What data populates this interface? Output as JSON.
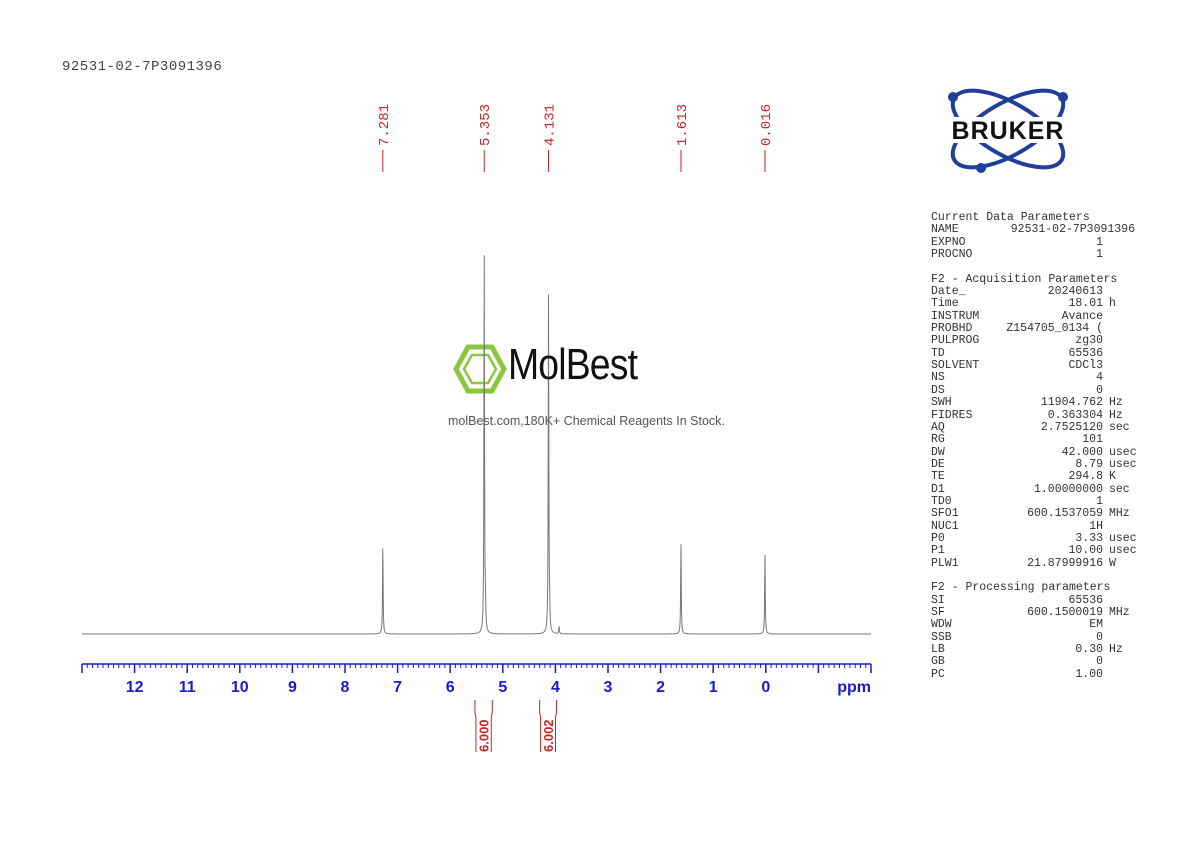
{
  "sample_name": "92531-02-7P3091396",
  "logo": {
    "brand": "BRUKER"
  },
  "watermark": {
    "name": "MolBest",
    "tagline": "molBest.com,180K+ Chemical Reagents In Stock."
  },
  "params": {
    "current": {
      "heading": "Current Data Parameters",
      "rows": [
        {
          "k": "NAME",
          "v": "92531-02-7P3091396",
          "u": ""
        },
        {
          "k": "EXPNO",
          "v": "1",
          "u": ""
        },
        {
          "k": "PROCNO",
          "v": "1",
          "u": ""
        }
      ]
    },
    "acq": {
      "heading": "F2 - Acquisition Parameters",
      "rows": [
        {
          "k": "Date_",
          "v": "20240613",
          "u": ""
        },
        {
          "k": "Time",
          "v": "18.01",
          "u": "h"
        },
        {
          "k": "INSTRUM",
          "v": "Avance",
          "u": ""
        },
        {
          "k": "PROBHD",
          "v": "Z154705_0134 (",
          "u": ""
        },
        {
          "k": "PULPROG",
          "v": "zg30",
          "u": ""
        },
        {
          "k": "TD",
          "v": "65536",
          "u": ""
        },
        {
          "k": "SOLVENT",
          "v": "CDCl3",
          "u": ""
        },
        {
          "k": "NS",
          "v": "4",
          "u": ""
        },
        {
          "k": "DS",
          "v": "0",
          "u": ""
        },
        {
          "k": "SWH",
          "v": "11904.762",
          "u": "Hz"
        },
        {
          "k": "FIDRES",
          "v": "0.363304",
          "u": "Hz"
        },
        {
          "k": "AQ",
          "v": "2.7525120",
          "u": "sec"
        },
        {
          "k": "RG",
          "v": "101",
          "u": ""
        },
        {
          "k": "DW",
          "v": "42.000",
          "u": "usec"
        },
        {
          "k": "DE",
          "v": "8.79",
          "u": "usec"
        },
        {
          "k": "TE",
          "v": "294.8",
          "u": "K"
        },
        {
          "k": "D1",
          "v": "1.00000000",
          "u": "sec"
        },
        {
          "k": "TD0",
          "v": "1",
          "u": ""
        },
        {
          "k": "SFO1",
          "v": "600.1537059",
          "u": "MHz"
        },
        {
          "k": "NUC1",
          "v": "1H",
          "u": ""
        },
        {
          "k": "P0",
          "v": "3.33",
          "u": "usec"
        },
        {
          "k": "P1",
          "v": "10.00",
          "u": "usec"
        },
        {
          "k": "PLW1",
          "v": "21.87999916",
          "u": "W"
        }
      ]
    },
    "proc": {
      "heading": "F2 - Processing parameters",
      "rows": [
        {
          "k": "SI",
          "v": "65536",
          "u": ""
        },
        {
          "k": "SF",
          "v": "600.1500019",
          "u": "MHz"
        },
        {
          "k": "WDW",
          "v": "EM",
          "u": ""
        },
        {
          "k": "SSB",
          "v": "0",
          "u": ""
        },
        {
          "k": "LB",
          "v": "0.30",
          "u": "Hz"
        },
        {
          "k": "GB",
          "v": "0",
          "u": ""
        },
        {
          "k": "PC",
          "v": "1.00",
          "u": ""
        }
      ]
    }
  },
  "chart_data": {
    "type": "line",
    "xlabel": "ppm",
    "xlim": [
      13.0,
      -2.0
    ],
    "x_ticks": [
      12,
      11,
      10,
      9,
      8,
      7,
      6,
      5,
      4,
      3,
      2,
      1,
      0
    ],
    "peaks": [
      {
        "ppm": 7.281,
        "label": "7.281",
        "intensity": 0.235
      },
      {
        "ppm": 5.353,
        "label": "5.353",
        "intensity": 1.0
      },
      {
        "ppm": 4.131,
        "label": "4.131",
        "intensity": 0.894
      },
      {
        "ppm": 1.613,
        "label": "1.613",
        "intensity": 0.241
      },
      {
        "ppm": 0.016,
        "label": "0.016",
        "intensity": 0.212
      }
    ],
    "minor_peaks": [
      {
        "ppm": 5.33,
        "intensity": 0.055
      },
      {
        "ppm": 4.11,
        "intensity": 0.05
      },
      {
        "ppm": 3.93,
        "intensity": 0.02
      }
    ],
    "integrals": [
      {
        "from": 5.53,
        "to": 5.2,
        "value": "6.000"
      },
      {
        "from": 4.3,
        "to": 3.98,
        "value": "6.002"
      }
    ],
    "colors": {
      "spectrum": "#777777",
      "axis": "#1a1acc",
      "labels": "#cc2222"
    }
  }
}
